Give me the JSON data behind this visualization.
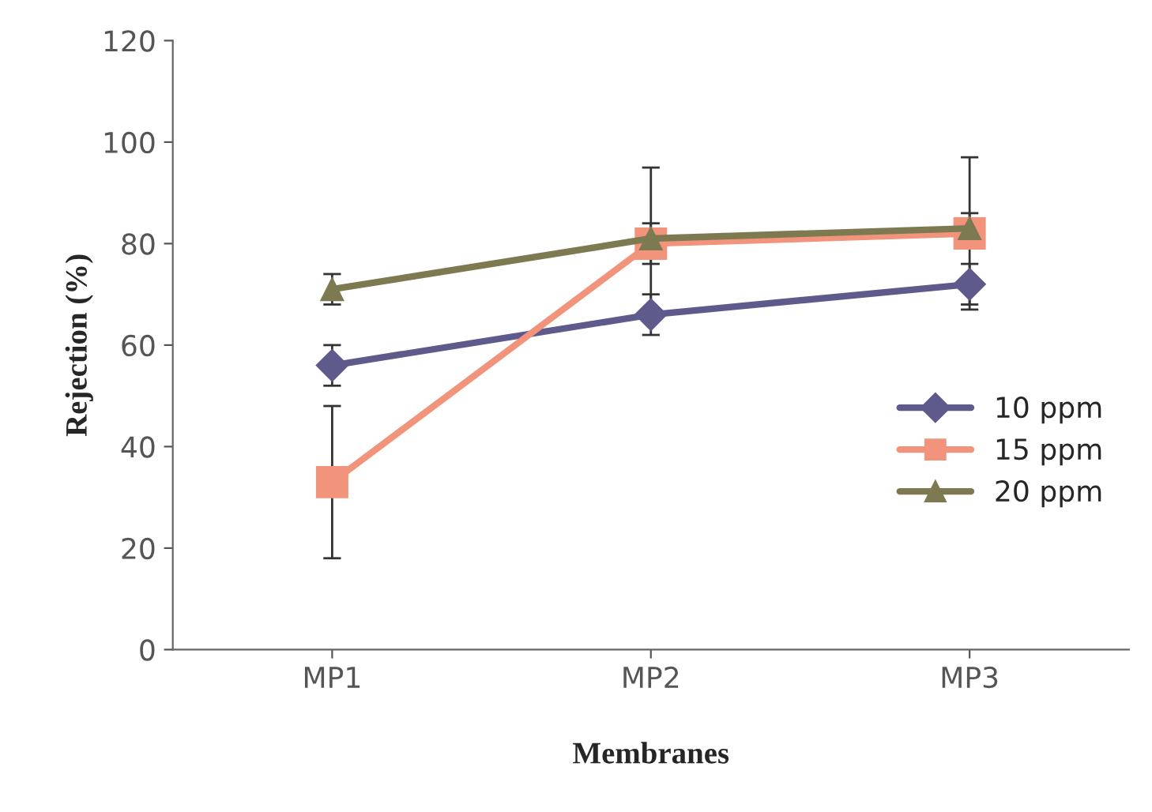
{
  "chart_data": {
    "type": "line",
    "xlabel": "Membranes",
    "ylabel": "Rejection (%)",
    "categories": [
      "MP1",
      "MP2",
      "MP3"
    ],
    "series": [
      {
        "name": "10 ppm",
        "color": "#5e5a8c",
        "marker": "diamond",
        "values": [
          56,
          66,
          72
        ],
        "errors": [
          4,
          4,
          4
        ]
      },
      {
        "name": "15 ppm",
        "color": "#f2937c",
        "marker": "square",
        "values": [
          33,
          80,
          82
        ],
        "errors": [
          15,
          4,
          15
        ]
      },
      {
        "name": "20 ppm",
        "color": "#7d7a52",
        "marker": "triangle",
        "values": [
          71,
          81,
          83
        ],
        "errors": [
          3,
          14,
          3
        ]
      }
    ],
    "ylim": [
      0,
      120
    ],
    "yticks": [
      0,
      20,
      40,
      60,
      80,
      100,
      120
    ],
    "grid": false,
    "legend": "right",
    "line_style": "solid"
  }
}
